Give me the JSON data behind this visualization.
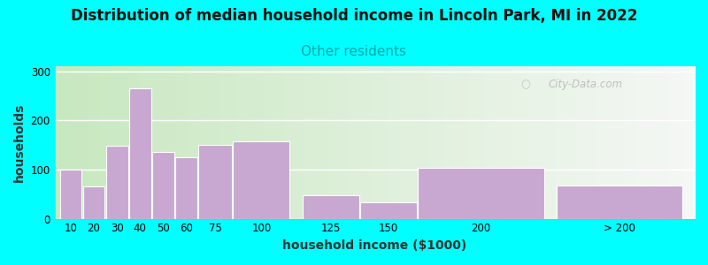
{
  "title": "Distribution of median household income in Lincoln Park, MI in 2022",
  "subtitle": "Other residents",
  "xlabel": "household income ($1000)",
  "ylabel": "households",
  "bar_color": "#C8A8D0",
  "background_outer": "#00FFFF",
  "background_inner_left": "#C8E8C0",
  "watermark": "City-Data.com",
  "categories": [
    "10",
    "20",
    "30",
    "40",
    "50",
    "60",
    "75",
    "100",
    "125",
    "150",
    "200",
    "> 200"
  ],
  "values": [
    100,
    65,
    148,
    265,
    135,
    125,
    150,
    157,
    48,
    33,
    103,
    67
  ],
  "bar_lefts": [
    5,
    15,
    25,
    35,
    45,
    55,
    65,
    80,
    110,
    135,
    160,
    220
  ],
  "bar_widths": [
    10,
    10,
    10,
    10,
    10,
    10,
    15,
    25,
    25,
    25,
    55,
    55
  ],
  "yticks": [
    0,
    100,
    200,
    300
  ],
  "ylim": [
    0,
    310
  ],
  "xlim": [
    3,
    280
  ],
  "title_fontsize": 12,
  "subtitle_fontsize": 11,
  "axis_label_fontsize": 10,
  "tick_fontsize": 8.5
}
